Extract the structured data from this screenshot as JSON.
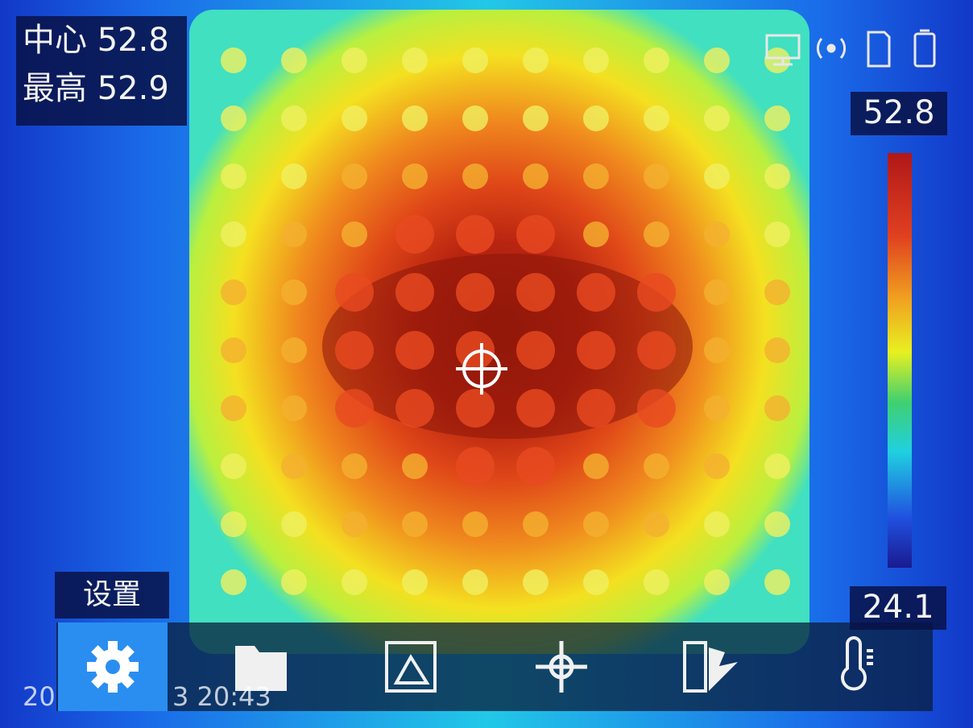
{
  "readings": {
    "center_label": "中心",
    "center_value": "52.8",
    "max_label": "最高",
    "max_value": "52.9"
  },
  "current_value": "52.8",
  "scale_min": "24.1",
  "menu_label": "设置",
  "timestamp": {
    "start": "20",
    "end": "3 20:43"
  }
}
